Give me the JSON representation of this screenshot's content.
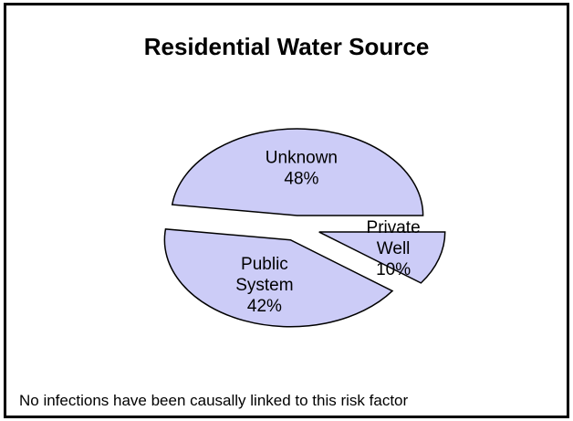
{
  "chart_data": {
    "type": "pie",
    "title": "Residential Water Source",
    "slices": [
      {
        "label_lines": [
          "Unknown",
          "48%"
        ],
        "value": 48
      },
      {
        "label_lines": [
          "Public",
          "System",
          "42%"
        ],
        "value": 42
      },
      {
        "label_lines": [
          "Private",
          "Well",
          "10%"
        ],
        "value": 10
      }
    ],
    "exploded": true,
    "fill_color": "#ccccf7",
    "edge_color": "#000000",
    "footnote": "No infections have been causally linked to this risk factor"
  }
}
